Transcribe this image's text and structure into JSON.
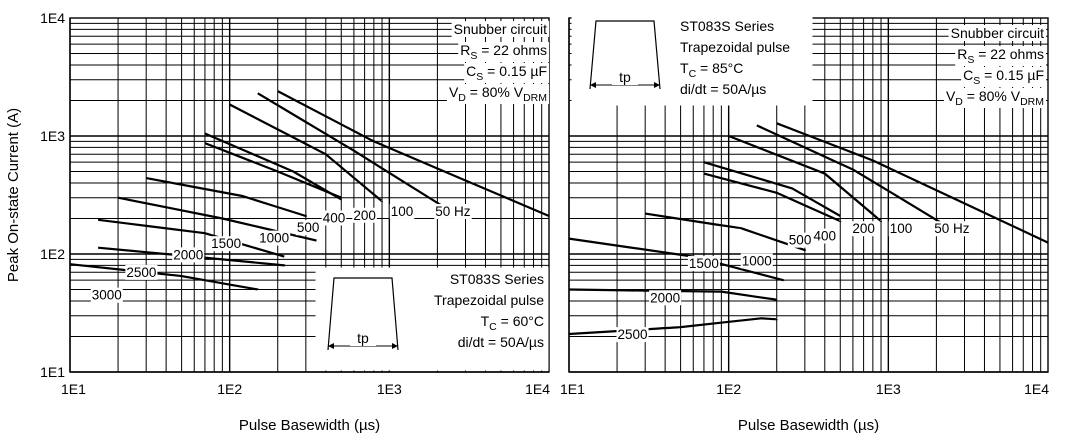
{
  "chart_data": [
    {
      "type": "line",
      "xlabel": "Pulse Basewidth (µs)",
      "ylabel": "Peak On-state Current (A)",
      "x_scale": "log",
      "y_scale": "log",
      "xlim": [
        10,
        10000
      ],
      "ylim": [
        10,
        10000
      ],
      "x_ticks": [
        "1E1",
        "1E2",
        "1E3",
        "1E4"
      ],
      "y_ticks": [
        "1E1",
        "1E2",
        "1E3",
        "1E4"
      ],
      "grid": true,
      "conditions": {
        "lines": [
          {
            "main": "Snubber circuit"
          },
          {
            "main": "R",
            "sub": "S",
            "rest": " = 22 ohms"
          },
          {
            "main": "C",
            "sub": "S",
            "rest": " = 0.15 µF"
          },
          {
            "main": "V",
            "sub": "D",
            "rest": " = 80% V",
            "sub2": "DRM"
          }
        ]
      },
      "info_box": {
        "lines": [
          {
            "main": "ST083S Series"
          },
          {
            "main": "Trapezoidal pulse"
          },
          {
            "main": "T",
            "sub": "C",
            "rest": " = 60°C"
          },
          {
            "main": "di/dt = 50A/µs"
          }
        ],
        "pulse_label": "tp"
      },
      "series": [
        {
          "name": "50 Hz",
          "points": [
            [
              200,
              2400
            ],
            [
              800,
              900
            ],
            [
              10000,
              210
            ]
          ]
        },
        {
          "name": "100",
          "points": [
            [
              150,
              2300
            ],
            [
              600,
              750
            ],
            [
              2200,
              250
            ]
          ]
        },
        {
          "name": "200",
          "points": [
            [
              100,
              1850
            ],
            [
              400,
              700
            ],
            [
              900,
              280
            ]
          ]
        },
        {
          "name": "400",
          "points": [
            [
              70,
              1050
            ],
            [
              250,
              500
            ],
            [
              500,
              290
            ]
          ]
        },
        {
          "name": "500",
          "points": [
            [
              70,
              870
            ],
            [
              200,
              500
            ],
            [
              500,
              300
            ]
          ]
        },
        {
          "name": "1000",
          "points": [
            [
              30,
              440
            ],
            [
              120,
              310
            ],
            [
              300,
              210
            ]
          ]
        },
        {
          "name": "1500",
          "points": [
            [
              20,
              300
            ],
            [
              90,
              200
            ],
            [
              350,
              130
            ]
          ]
        },
        {
          "name": "2000",
          "points": [
            [
              15,
              195
            ],
            [
              70,
              150
            ],
            [
              220,
              95
            ]
          ]
        },
        {
          "name": "2500",
          "points": [
            [
              15,
              113
            ],
            [
              60,
              95
            ],
            [
              220,
              80
            ]
          ]
        },
        {
          "name": "3000",
          "points": [
            [
              10,
              82
            ],
            [
              50,
              65
            ],
            [
              150,
              50
            ]
          ]
        }
      ],
      "curve_labels": [
        {
          "text": "50 Hz",
          "x": 2500,
          "y": 210
        },
        {
          "text": "100",
          "x": 1200,
          "y": 210
        },
        {
          "text": "200",
          "x": 700,
          "y": 195
        },
        {
          "text": "400",
          "x": 450,
          "y": 185
        },
        {
          "text": "500",
          "x": 310,
          "y": 153
        },
        {
          "text": "1000",
          "x": 190,
          "y": 125
        },
        {
          "text": "1500",
          "x": 95,
          "y": 112
        },
        {
          "text": "2000",
          "x": 55,
          "y": 90
        },
        {
          "text": "2500",
          "x": 28,
          "y": 64
        },
        {
          "text": "3000",
          "x": 17,
          "y": 41
        }
      ]
    },
    {
      "type": "line",
      "xlabel": "Pulse Basewidth (µs)",
      "ylabel": "",
      "x_scale": "log",
      "y_scale": "log",
      "xlim": [
        10,
        10000
      ],
      "ylim": [
        10,
        10000
      ],
      "x_ticks": [
        "1E1",
        "1E2",
        "1E3",
        "1E4"
      ],
      "grid": true,
      "conditions": {
        "lines": [
          {
            "main": "Snubber circuit"
          },
          {
            "main": "R",
            "sub": "S",
            "rest": " = 22 ohms"
          },
          {
            "main": "C",
            "sub": "S",
            "rest": " = 0.15 µF"
          },
          {
            "main": "V",
            "sub": "D",
            "rest": " = 80% V",
            "sub2": "DRM"
          }
        ]
      },
      "info_box": {
        "lines": [
          {
            "main": "ST083S Series"
          },
          {
            "main": "Trapezoidal pulse"
          },
          {
            "main": "T",
            "sub": "C",
            "rest": " = 85°C"
          },
          {
            "main": "di/dt = 50A/µs"
          }
        ],
        "pulse_label": "tp"
      },
      "series": [
        {
          "name": "50 Hz",
          "points": [
            [
              200,
              1280
            ],
            [
              800,
              620
            ],
            [
              10000,
              125
            ]
          ]
        },
        {
          "name": "100",
          "points": [
            [
              150,
              1230
            ],
            [
              600,
              520
            ],
            [
              2200,
              180
            ]
          ]
        },
        {
          "name": "200",
          "points": [
            [
              100,
              1000
            ],
            [
              400,
              480
            ],
            [
              900,
              190
            ]
          ]
        },
        {
          "name": "400",
          "points": [
            [
              70,
              600
            ],
            [
              250,
              360
            ],
            [
              500,
              210
            ]
          ]
        },
        {
          "name": "500",
          "points": [
            [
              70,
              480
            ],
            [
              200,
              330
            ],
            [
              500,
              190
            ]
          ]
        },
        {
          "name": "1000",
          "points": [
            [
              30,
              220
            ],
            [
              120,
              165
            ],
            [
              300,
              108
            ]
          ]
        },
        {
          "name": "1500",
          "points": [
            [
              10,
              135
            ],
            [
              60,
              95
            ],
            [
              220,
              60
            ]
          ]
        },
        {
          "name": "2000",
          "points": [
            [
              10,
              50
            ],
            [
              90,
              48
            ],
            [
              200,
              41
            ]
          ]
        },
        {
          "name": "2500",
          "points": [
            [
              10,
              21
            ],
            [
              50,
              24
            ],
            [
              160,
              28.5
            ],
            [
              200,
              28
            ]
          ]
        }
      ],
      "curve_labels": [
        {
          "text": "50 Hz",
          "x": 2500,
          "y": 150
        },
        {
          "text": "100",
          "x": 1200,
          "y": 150
        },
        {
          "text": "200",
          "x": 700,
          "y": 150
        },
        {
          "text": "400",
          "x": 400,
          "y": 130
        },
        {
          "text": "500",
          "x": 280,
          "y": 120
        },
        {
          "text": "1000",
          "x": 150,
          "y": 80
        },
        {
          "text": "1500",
          "x": 70,
          "y": 76
        },
        {
          "text": "2000",
          "x": 40,
          "y": 39
        },
        {
          "text": "2500",
          "x": 25,
          "y": 19
        }
      ]
    }
  ]
}
